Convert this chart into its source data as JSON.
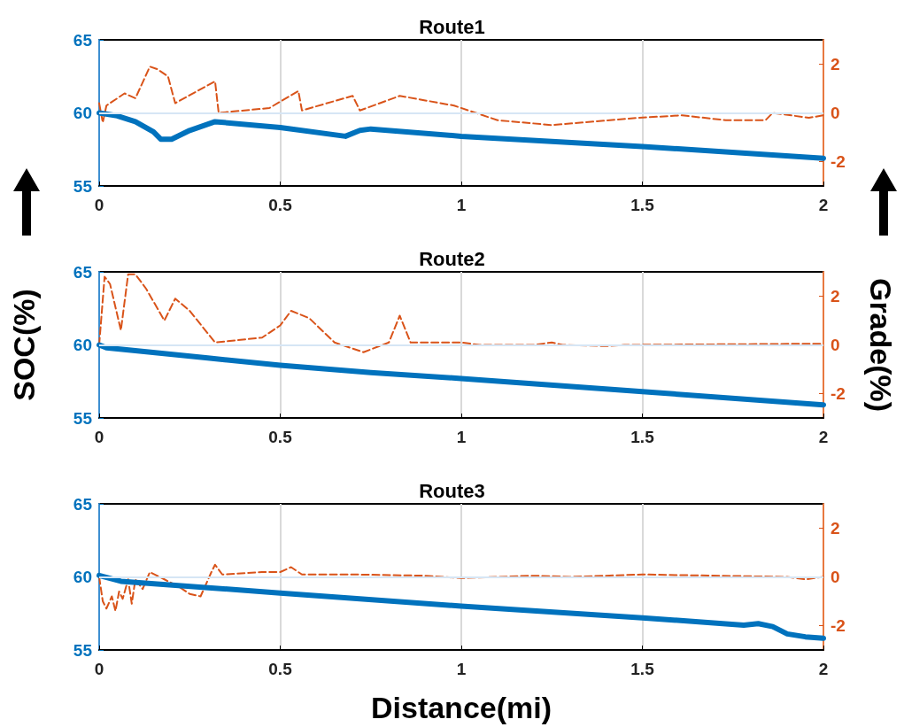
{
  "chart_data": [
    {
      "type": "line",
      "title": "Route1",
      "xlim": [
        0,
        2
      ],
      "xticks": [
        0,
        0.5,
        1,
        1.5,
        2
      ],
      "ylim": [
        55,
        65
      ],
      "yticks": [
        55,
        60,
        65
      ],
      "y2lim": [
        -3,
        3
      ],
      "y2ticks": [
        -2,
        0,
        2
      ],
      "grid": "x",
      "marker": "none",
      "ref_lines": [
        {
          "axis": "y",
          "value": 60,
          "color": "#d6e6f5"
        }
      ],
      "series": [
        {
          "color": "#0072bd",
          "line_style": "solid",
          "x": [
            0,
            0.05,
            0.1,
            0.15,
            0.17,
            0.2,
            0.25,
            0.32,
            0.5,
            0.68,
            0.72,
            0.75,
            1,
            1.5,
            2
          ],
          "values": [
            60,
            59.8,
            59.4,
            58.7,
            58.2,
            58.2,
            58.8,
            59.4,
            59,
            58.4,
            58.8,
            58.9,
            58.4,
            57.7,
            56.9
          ]
        },
        {
          "color": "#d95319",
          "line_style": "dashed",
          "axis": "y2",
          "x": [
            0,
            0.01,
            0.02,
            0.07,
            0.1,
            0.14,
            0.16,
            0.19,
            0.21,
            0.32,
            0.33,
            0.47,
            0.55,
            0.56,
            0.7,
            0.72,
            0.83,
            0.98,
            1.1,
            1.25,
            1.49,
            1.61,
            1.73,
            1.84,
            1.86,
            1.96,
            2
          ],
          "values": [
            0.4,
            -0.4,
            0.3,
            0.8,
            0.6,
            1.9,
            1.8,
            1.5,
            0.4,
            1.3,
            0,
            0.2,
            0.9,
            0.1,
            0.7,
            0.1,
            0.7,
            0.3,
            -0.3,
            -0.5,
            -0.2,
            -0.1,
            -0.3,
            -0.3,
            0,
            -0.2,
            -0.1
          ]
        }
      ]
    },
    {
      "type": "line",
      "title": "Route2",
      "ylabel": "SOC(%)",
      "y2label": "Grade(%)",
      "xlim": [
        0,
        2
      ],
      "xticks": [
        0,
        0.5,
        1,
        1.5,
        2
      ],
      "ylim": [
        55,
        65
      ],
      "yticks": [
        55,
        60,
        65
      ],
      "y2lim": [
        -3,
        3
      ],
      "y2ticks": [
        -2,
        0,
        2
      ],
      "grid": "x",
      "marker": "none",
      "ref_lines": [
        {
          "axis": "y",
          "value": 60,
          "color": "#d6e6f5"
        }
      ],
      "series": [
        {
          "color": "#0072bd",
          "line_style": "solid",
          "x": [
            0,
            0.02,
            0.1,
            0.3,
            0.5,
            0.75,
            1,
            1.5,
            2
          ],
          "values": [
            60,
            59.8,
            59.6,
            59.1,
            58.6,
            58.1,
            57.7,
            56.8,
            55.9
          ]
        },
        {
          "color": "#d95319",
          "line_style": "dashed",
          "axis": "y2",
          "x": [
            0,
            0.015,
            0.03,
            0.06,
            0.08,
            0.1,
            0.13,
            0.18,
            0.21,
            0.25,
            0.32,
            0.45,
            0.5,
            0.53,
            0.58,
            0.65,
            0.73,
            0.8,
            0.83,
            0.86,
            1,
            1.05,
            1.2,
            1.25,
            1.28,
            1.4,
            1.45,
            2
          ],
          "values": [
            0,
            2.8,
            2.5,
            0.6,
            2.9,
            2.9,
            2.3,
            1,
            1.9,
            1.4,
            0.1,
            0.3,
            0.8,
            1.4,
            1.1,
            0.1,
            -0.3,
            0.1,
            1.2,
            0.1,
            0.1,
            0,
            0,
            0.1,
            0,
            -0.05,
            0,
            0.05
          ]
        }
      ]
    },
    {
      "type": "line",
      "title": "Route3",
      "xlabel": "Distance(mi)",
      "xlim": [
        0,
        2
      ],
      "xticks": [
        0,
        0.5,
        1,
        1.5,
        2
      ],
      "ylim": [
        55,
        65
      ],
      "yticks": [
        55,
        60,
        65
      ],
      "y2lim": [
        -3,
        3
      ],
      "y2ticks": [
        -2,
        0,
        2
      ],
      "grid": "x",
      "marker": "none",
      "ref_lines": [
        {
          "axis": "y",
          "value": 60,
          "color": "#d6e6f5"
        }
      ],
      "series": [
        {
          "color": "#0072bd",
          "line_style": "solid",
          "x": [
            0,
            0.03,
            0.06,
            0.5,
            1,
            1.5,
            1.78,
            1.82,
            1.86,
            1.9,
            1.95,
            2
          ],
          "values": [
            60.1,
            59.9,
            59.7,
            58.9,
            58,
            57.2,
            56.7,
            56.8,
            56.6,
            56.1,
            55.9,
            55.8
          ]
        },
        {
          "color": "#d95319",
          "line_style": "dashed",
          "axis": "y2",
          "x": [
            0,
            0.01,
            0.02,
            0.035,
            0.045,
            0.055,
            0.065,
            0.08,
            0.09,
            0.1,
            0.12,
            0.14,
            0.18,
            0.22,
            0.25,
            0.28,
            0.31,
            0.32,
            0.34,
            0.45,
            0.5,
            0.53,
            0.56,
            0.7,
            0.9,
            1,
            1.2,
            1.3,
            1.5,
            1.9,
            1.95,
            2
          ],
          "values": [
            0,
            -1,
            -1.3,
            -0.8,
            -1.4,
            -0.6,
            -0.9,
            -0.1,
            -1.1,
            -0.1,
            -0.5,
            0.2,
            -0.1,
            -0.4,
            -0.7,
            -0.8,
            0.2,
            0.5,
            0.1,
            0.2,
            0.2,
            0.4,
            0.1,
            0.1,
            0.05,
            -0.05,
            0.05,
            0,
            0.1,
            0,
            -0.1,
            0
          ]
        }
      ]
    }
  ]
}
